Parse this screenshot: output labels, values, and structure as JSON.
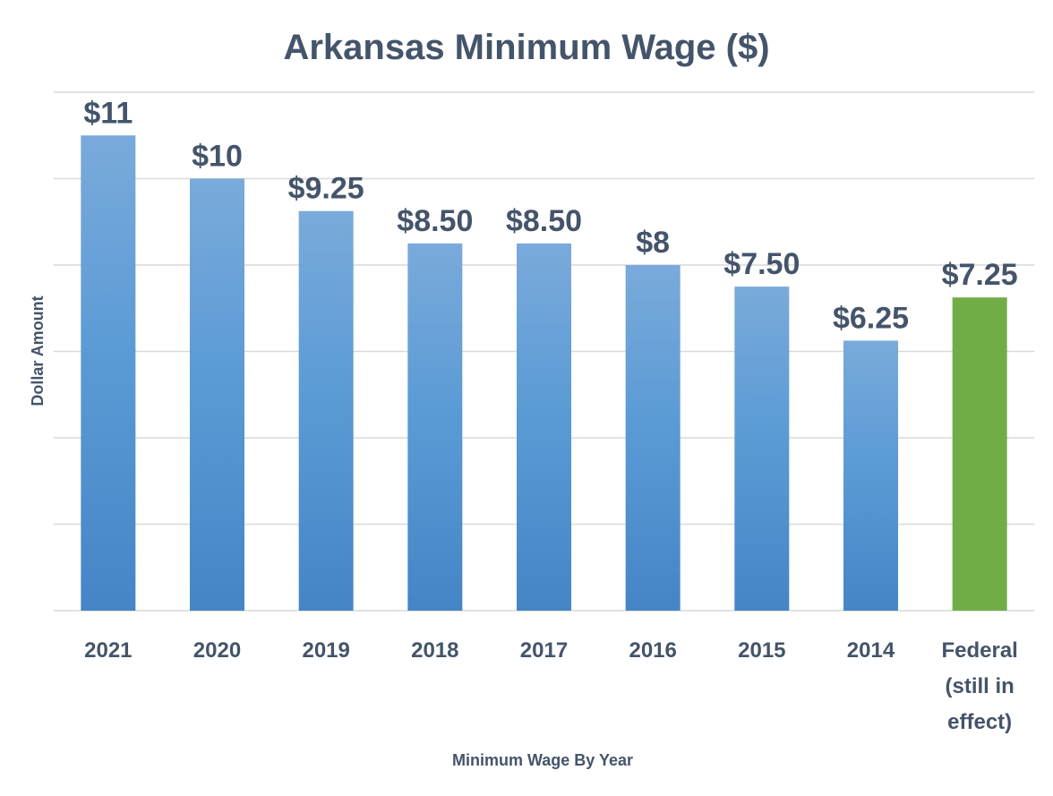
{
  "chart_data": {
    "type": "bar",
    "title": "Arkansas Minimum Wage ($)",
    "xlabel": "Minimum Wage By Year",
    "ylabel": "Dollar Amount",
    "ylim": [
      0,
      12
    ],
    "grid": true,
    "gridline_step": 2,
    "categories": [
      "2021",
      "2020",
      "2019",
      "2018",
      "2017",
      "2016",
      "2015",
      "2014",
      "Federal (still in effect)"
    ],
    "category_lines": [
      [
        "2021"
      ],
      [
        "2020"
      ],
      [
        "2019"
      ],
      [
        "2018"
      ],
      [
        "2017"
      ],
      [
        "2016"
      ],
      [
        "2015"
      ],
      [
        "2014"
      ],
      [
        "Federal",
        "(still in",
        "effect)"
      ]
    ],
    "values": [
      11,
      10,
      9.25,
      8.5,
      8.5,
      8,
      7.5,
      6.25,
      7.25
    ],
    "data_labels": [
      "$11",
      "$10",
      "$9.25",
      "$8.50",
      "$8.50",
      "$8",
      "$7.50",
      "$6.25",
      "$7.25"
    ],
    "bar_colors": [
      "#5b9bd5",
      "#5b9bd5",
      "#5b9bd5",
      "#5b9bd5",
      "#5b9bd5",
      "#5b9bd5",
      "#5b9bd5",
      "#5b9bd5",
      "#70ad47"
    ],
    "legend": "none"
  },
  "colors": {
    "text": "#44546a",
    "grid": "#d9d9d9",
    "state_bar_light": "#7aaadb",
    "state_bar_mid": "#5b9bd5",
    "state_bar_dark": "#4585c6",
    "federal_bar": "#70ad47"
  }
}
